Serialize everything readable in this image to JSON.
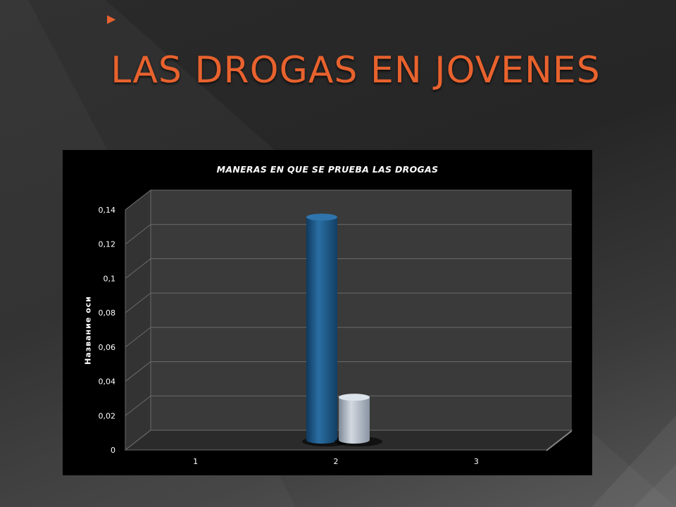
{
  "slide": {
    "title": "LAS DROGAS EN JOVENES"
  },
  "colors": {
    "title": "#e8622e",
    "series1": "#1d5a8a",
    "series2": "#aab4c0",
    "chart_background": "#000000",
    "plot_wall": "#3a3a3a"
  },
  "chart_data": {
    "type": "bar",
    "title": "MANERAS EN QUE SE PRUEBA LAS DROGAS",
    "xlabel": "",
    "ylabel": "Название оси",
    "categories": [
      "1",
      "2",
      "3"
    ],
    "series": [
      {
        "values": [
          0,
          0.13,
          0
        ]
      },
      {
        "values": [
          0,
          0.025,
          0
        ]
      }
    ],
    "ylim": [
      0,
      0.14
    ],
    "yticks": [
      0,
      0.02,
      0.04,
      0.06,
      0.08,
      0.1,
      0.12,
      0.14
    ],
    "ytick_labels": [
      "0",
      "0,02",
      "0,04",
      "0,06",
      "0,08",
      "0,1",
      "0,12",
      "0,14"
    ],
    "grid": true,
    "legend": "none",
    "style": "3d-cylinder"
  }
}
